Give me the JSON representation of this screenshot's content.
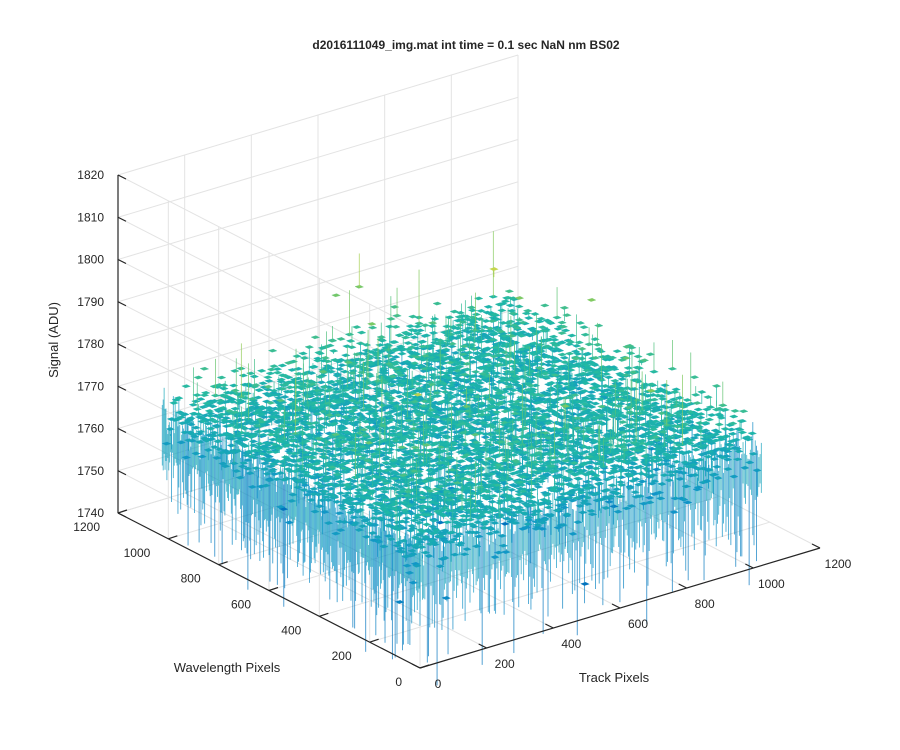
{
  "chart_data": {
    "type": "surface",
    "title": "d2016111049_img.mat int time = 0.1 sec  NaN nm BS02",
    "xlabel": "Track Pixels",
    "ylabel": "Wavelength Pixels",
    "zlabel": "Signal (ADU)",
    "xlim": [
      0,
      1200
    ],
    "ylim": [
      0,
      1200
    ],
    "zlim": [
      1740,
      1820
    ],
    "x_ticks": [
      "0",
      "200",
      "400",
      "600",
      "800",
      "1000",
      "1200"
    ],
    "y_ticks": [
      "0",
      "200",
      "400",
      "600",
      "800",
      "1000",
      "1200"
    ],
    "z_ticks": [
      "1740",
      "1750",
      "1760",
      "1770",
      "1780",
      "1790",
      "1800",
      "1810",
      "1820"
    ],
    "data_extent": {
      "x": [
        0,
        1024
      ],
      "y": [
        0,
        1024
      ]
    },
    "signal": {
      "mean": 1769,
      "approx_min": 1745,
      "approx_max": 1800
    },
    "grid": true,
    "colormap": "parula",
    "colors": {
      "low": "#0072bd",
      "mid": "#1fb8a6",
      "high": "#c9d64a"
    }
  }
}
